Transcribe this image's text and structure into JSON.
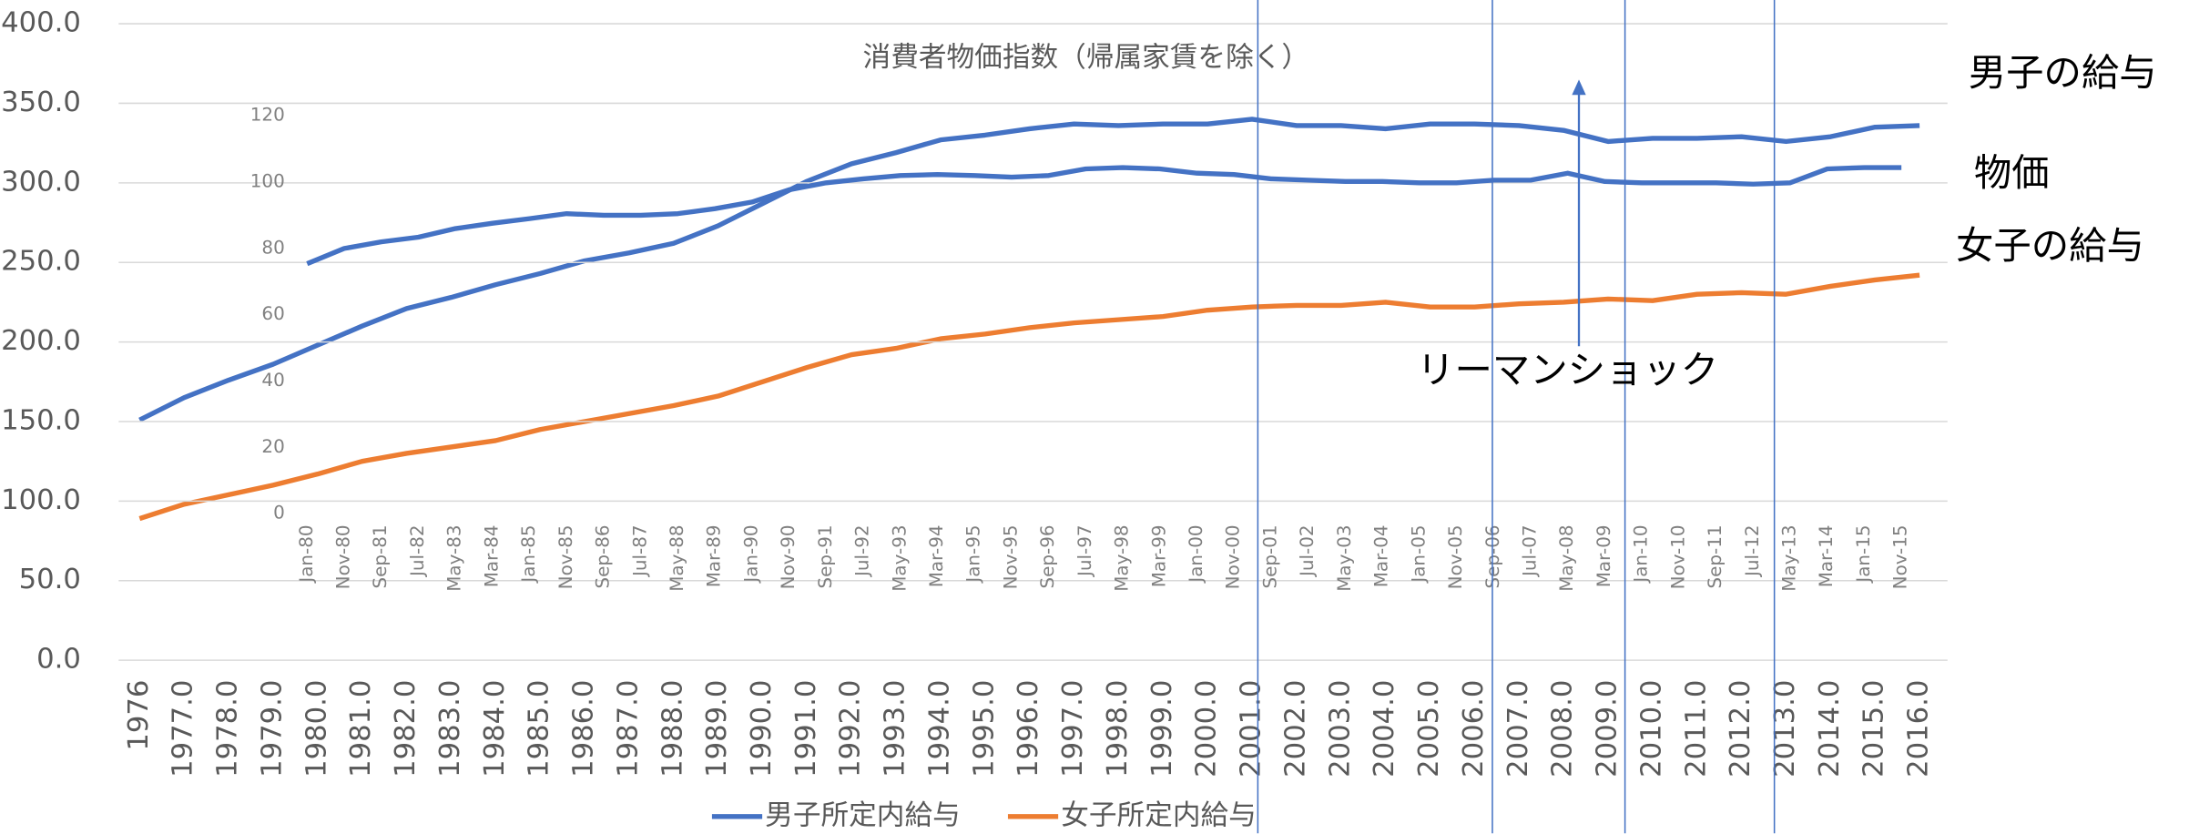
{
  "chart_data": [
    {
      "type": "line",
      "annotations": [
        "男子の給与",
        "物価",
        "女子の給与",
        "リーマンショック"
      ],
      "categories": [
        "1976",
        "1977.0",
        "1978.0",
        "1979.0",
        "1980.0",
        "1981.0",
        "1982.0",
        "1983.0",
        "1984.0",
        "1985.0",
        "1986.0",
        "1987.0",
        "1988.0",
        "1989.0",
        "1990.0",
        "1991.0",
        "1992.0",
        "1993.0",
        "1994.0",
        "1995.0",
        "1996.0",
        "1997.0",
        "1998.0",
        "1999.0",
        "2000.0",
        "2001.0",
        "2002.0",
        "2003.0",
        "2004.0",
        "2005.0",
        "2006.0",
        "2007.0",
        "2008.0",
        "2009.0",
        "2010.0",
        "2011.0",
        "2012.0",
        "2013.0",
        "2014.0",
        "2015.0",
        "2016.0"
      ],
      "series": [
        {
          "name": "男子所定内給与",
          "color": "#4472c4",
          "values": [
            151,
            165,
            176,
            186,
            198,
            210,
            221,
            228,
            236,
            243,
            251,
            256,
            262,
            273,
            287,
            301,
            312,
            319,
            327,
            330,
            334,
            337,
            336,
            337,
            337,
            340,
            336,
            336,
            334,
            337,
            337,
            336,
            333,
            326,
            328,
            328,
            329,
            326,
            329,
            335,
            336
          ]
        },
        {
          "name": "女子所定内給与",
          "color": "#ed7d31",
          "values": [
            89,
            98,
            104,
            110,
            117,
            125,
            130,
            134,
            138,
            145,
            150,
            155,
            160,
            166,
            175,
            184,
            192,
            196,
            202,
            205,
            209,
            212,
            214,
            216,
            220,
            222,
            223,
            223,
            225,
            222,
            222,
            224,
            225,
            227,
            226,
            230,
            231,
            230,
            235,
            239,
            242
          ]
        }
      ],
      "ylim": [
        0,
        400
      ],
      "yticks": [
        {
          "value": 0,
          "label": "0.0"
        },
        {
          "value": 50,
          "label": "50.0"
        },
        {
          "value": 100,
          "label": "100.0"
        },
        {
          "value": 150,
          "label": "150.0"
        },
        {
          "value": 200,
          "label": "200.0"
        },
        {
          "value": 250,
          "label": "250.0"
        },
        {
          "value": 300,
          "label": "300.0"
        },
        {
          "value": 350,
          "label": "350.0"
        },
        {
          "value": 400,
          "label": "400.0"
        }
      ],
      "grid": true,
      "legend": "bottom"
    },
    {
      "type": "line",
      "title": "消費者物価指数（帰属家賃を除く）",
      "categories": [
        "Jan-80",
        "Nov-80",
        "Sep-81",
        "Jul-82",
        "May-83",
        "Mar-84",
        "Jan-85",
        "Nov-85",
        "Sep-86",
        "Jul-87",
        "May-88",
        "Mar-89",
        "Jan-90",
        "Nov-90",
        "Sep-91",
        "Jul-92",
        "May-93",
        "Mar-94",
        "Jan-95",
        "Nov-95",
        "Sep-96",
        "Jul-97",
        "May-98",
        "Mar-99",
        "Jan-00",
        "Nov-00",
        "Sep-01",
        "Jul-02",
        "May-03",
        "Mar-04",
        "Jan-05",
        "Nov-05",
        "Sep-06",
        "Jul-07",
        "May-08",
        "Mar-09",
        "Jan-10",
        "Nov-10",
        "Sep-11",
        "Jul-12",
        "May-13",
        "Mar-14",
        "Jan-15",
        "Nov-15"
      ],
      "values": [
        75.4,
        80,
        82,
        83.4,
        86,
        87.6,
        89,
        90.5,
        90,
        90,
        90.5,
        92,
        94,
        97.7,
        99.8,
        101,
        102,
        102.3,
        102,
        101.5,
        102,
        104,
        104.4,
        104,
        102.7,
        102.3,
        101,
        100.6,
        100.2,
        100.2,
        99.8,
        99.8,
        100.6,
        100.6,
        102.7,
        100.2,
        99.8,
        99.8,
        99.8,
        99.4,
        99.8,
        104,
        104.4,
        104.4
      ],
      "color": "#4472c4",
      "ylim": [
        0,
        120
      ],
      "yticks": [
        0,
        20,
        40,
        60,
        80,
        100,
        120
      ]
    }
  ]
}
